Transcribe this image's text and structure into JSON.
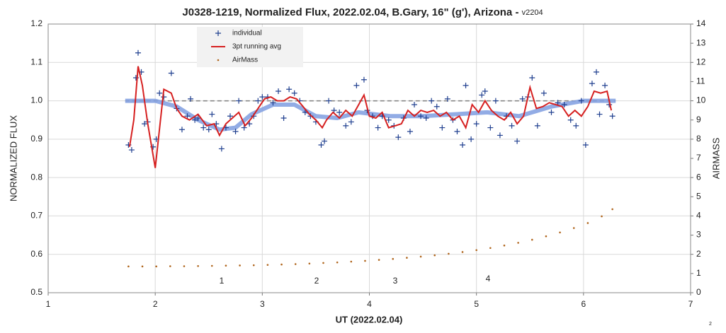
{
  "chart_data": {
    "type": "scatter",
    "title": "J0328-1219, Normalized Flux, 2022.02.04, B.Gary, 16\" (g'), Arizona -",
    "version": "v2204",
    "x_label": "UT (2022.02.04)",
    "y_label": "NORMALIZED FLUX",
    "y2_label": "AIRMASS",
    "page_number": "2",
    "annotations": [
      "1",
      "2",
      "3",
      "4"
    ],
    "xlim": [
      1,
      7
    ],
    "xticks": [
      1,
      2,
      3,
      4,
      5,
      6,
      7
    ],
    "ylim": [
      0.5,
      1.2
    ],
    "yticks": [
      0.5,
      0.6,
      0.7,
      0.8,
      0.9,
      {
        "value": 1,
        "label": "1.0"
      },
      1.1,
      1.2
    ],
    "y2lim": [
      0,
      14
    ],
    "y2ticks": [
      0,
      1,
      2,
      3,
      4,
      5,
      6,
      7,
      8,
      9,
      10,
      11,
      12,
      13,
      14
    ],
    "grid": true,
    "legend": "upper-left",
    "series": [
      {
        "style": "dashed",
        "color": "#7f7f7f",
        "x": [
          1.72,
          6.3
        ],
        "values": [
          1,
          1
        ]
      },
      {
        "style": "band",
        "color": "#7f9de0",
        "x": [
          1.72,
          2.0,
          2.2,
          2.4,
          2.6,
          2.75,
          2.9,
          3.1,
          3.3,
          3.5,
          3.7,
          3.9,
          4.2,
          4.5,
          4.8,
          5.1,
          5.4,
          5.7,
          6.0,
          6.3
        ],
        "values": [
          1.0,
          1.0,
          0.985,
          0.95,
          0.925,
          0.93,
          0.965,
          0.99,
          0.99,
          0.96,
          0.955,
          0.97,
          0.96,
          0.96,
          0.965,
          0.97,
          0.96,
          0.985,
          1.0,
          1.0
        ]
      },
      {
        "name": "individual",
        "style": "plus",
        "color": "#1f3f8f",
        "x": [
          1.75,
          1.78,
          1.82,
          1.84,
          1.87,
          1.9,
          1.93,
          1.98,
          2.01,
          2.04,
          2.08,
          2.15,
          2.2,
          2.25,
          2.3,
          2.33,
          2.37,
          2.4,
          2.45,
          2.5,
          2.53,
          2.57,
          2.62,
          2.66,
          2.7,
          2.75,
          2.78,
          2.83,
          2.88,
          2.92,
          2.96,
          3.0,
          3.05,
          3.1,
          3.15,
          3.2,
          3.25,
          3.3,
          3.35,
          3.4,
          3.45,
          3.5,
          3.55,
          3.58,
          3.62,
          3.67,
          3.72,
          3.78,
          3.83,
          3.88,
          3.95,
          3.98,
          4.03,
          4.08,
          4.12,
          4.18,
          4.23,
          4.27,
          4.32,
          4.38,
          4.42,
          4.48,
          4.53,
          4.58,
          4.63,
          4.68,
          4.73,
          4.78,
          4.82,
          4.87,
          4.9,
          4.95,
          5.0,
          5.05,
          5.08,
          5.13,
          5.18,
          5.22,
          5.28,
          5.33,
          5.38,
          5.43,
          5.48,
          5.52,
          5.57,
          5.63,
          5.7,
          5.76,
          5.82,
          5.88,
          5.93,
          5.98,
          6.02,
          6.08,
          6.12,
          6.15,
          6.2,
          6.24,
          6.27
        ],
        "values": [
          0.885,
          0.872,
          1.06,
          1.125,
          1.075,
          0.94,
          0.945,
          0.88,
          0.9,
          1.02,
          1.01,
          1.072,
          0.98,
          0.925,
          0.96,
          1.005,
          0.95,
          0.955,
          0.93,
          0.925,
          0.965,
          0.94,
          0.875,
          0.93,
          0.96,
          0.92,
          1.0,
          0.93,
          0.94,
          0.96,
          1.0,
          1.01,
          1.01,
          0.995,
          1.025,
          0.955,
          1.03,
          1.02,
          1.0,
          0.97,
          0.96,
          0.945,
          0.885,
          0.895,
          1.0,
          0.975,
          0.97,
          0.935,
          0.945,
          1.04,
          1.055,
          0.975,
          0.96,
          0.93,
          0.96,
          0.95,
          0.935,
          0.905,
          0.955,
          0.92,
          0.99,
          0.96,
          0.955,
          1.0,
          0.985,
          0.93,
          1.005,
          0.95,
          0.92,
          0.885,
          1.04,
          0.9,
          0.94,
          1.015,
          1.025,
          0.93,
          1.0,
          0.91,
          0.96,
          0.935,
          0.895,
          1.005,
          1.01,
          1.06,
          0.935,
          1.02,
          0.97,
          0.995,
          0.99,
          0.95,
          0.935,
          1.0,
          0.885,
          1.045,
          1.075,
          0.965,
          1.04,
          0.99,
          0.96
        ]
      },
      {
        "name": "3pt running avg",
        "style": "line",
        "color": "#d62020",
        "x": [
          1.76,
          1.8,
          1.84,
          1.88,
          1.93,
          2.0,
          2.08,
          2.15,
          2.2,
          2.25,
          2.32,
          2.4,
          2.48,
          2.55,
          2.6,
          2.66,
          2.72,
          2.78,
          2.84,
          2.9,
          2.96,
          3.02,
          3.08,
          3.14,
          3.2,
          3.26,
          3.32,
          3.38,
          3.44,
          3.5,
          3.56,
          3.6,
          3.66,
          3.72,
          3.78,
          3.84,
          3.9,
          3.95,
          4.0,
          4.06,
          4.12,
          4.18,
          4.24,
          4.3,
          4.36,
          4.42,
          4.48,
          4.54,
          4.6,
          4.66,
          4.72,
          4.78,
          4.84,
          4.9,
          4.96,
          5.02,
          5.08,
          5.14,
          5.2,
          5.26,
          5.32,
          5.38,
          5.44,
          5.5,
          5.56,
          5.62,
          5.68,
          5.74,
          5.8,
          5.86,
          5.92,
          5.98,
          6.04,
          6.1,
          6.16,
          6.22,
          6.26
        ],
        "values": [
          0.88,
          0.95,
          1.09,
          1.04,
          0.94,
          0.825,
          1.03,
          1.02,
          0.98,
          0.96,
          0.95,
          0.965,
          0.935,
          0.94,
          0.91,
          0.94,
          0.955,
          0.97,
          0.935,
          0.955,
          0.98,
          1.005,
          1.01,
          1.0,
          1.0,
          1.01,
          1.005,
          0.985,
          0.965,
          0.95,
          0.93,
          0.95,
          0.97,
          0.955,
          0.975,
          0.96,
          0.99,
          1.015,
          0.96,
          0.955,
          0.97,
          0.93,
          0.935,
          0.94,
          0.975,
          0.96,
          0.975,
          0.97,
          0.975,
          0.96,
          0.97,
          0.95,
          0.96,
          0.93,
          0.99,
          0.97,
          1.0,
          0.975,
          0.96,
          0.95,
          0.97,
          0.94,
          0.96,
          1.035,
          0.98,
          0.985,
          0.995,
          0.99,
          0.985,
          0.96,
          0.975,
          0.96,
          0.985,
          1.025,
          1.02,
          1.025,
          0.975
        ]
      },
      {
        "name": "AirMass",
        "style": "dots",
        "color": "#b0651c",
        "axis": "y2",
        "x": [
          1.75,
          1.88,
          2.01,
          2.14,
          2.27,
          2.4,
          2.53,
          2.66,
          2.79,
          2.92,
          3.05,
          3.18,
          3.31,
          3.44,
          3.57,
          3.7,
          3.83,
          3.96,
          4.09,
          4.22,
          4.35,
          4.48,
          4.61,
          4.74,
          4.87,
          5.0,
          5.13,
          5.26,
          5.39,
          5.52,
          5.65,
          5.78,
          5.91,
          6.04,
          6.17,
          6.27
        ],
        "values": [
          1.37,
          1.37,
          1.37,
          1.38,
          1.38,
          1.39,
          1.4,
          1.41,
          1.42,
          1.43,
          1.45,
          1.47,
          1.49,
          1.52,
          1.55,
          1.58,
          1.62,
          1.66,
          1.71,
          1.76,
          1.82,
          1.88,
          1.95,
          2.03,
          2.12,
          2.22,
          2.33,
          2.46,
          2.6,
          2.76,
          2.94,
          3.14,
          3.37,
          3.63,
          3.98,
          4.35
        ]
      }
    ]
  }
}
